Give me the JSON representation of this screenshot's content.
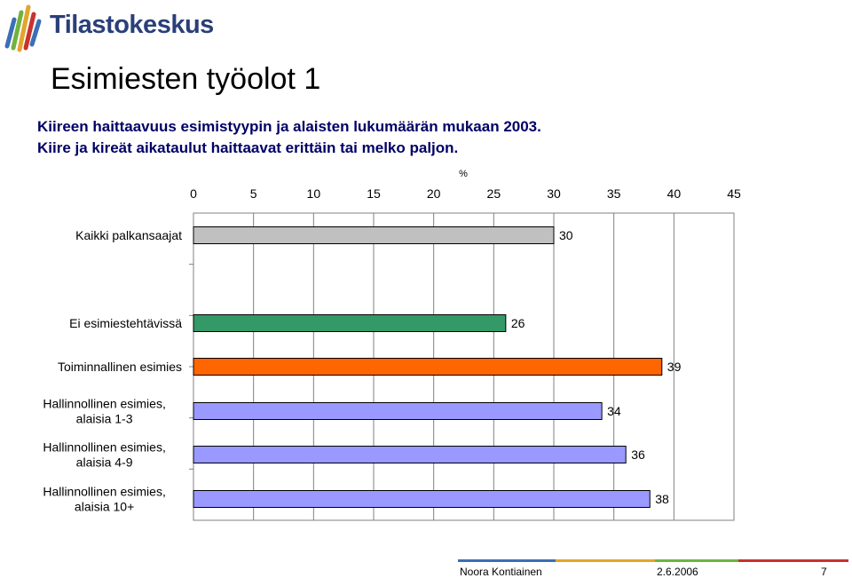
{
  "logo": {
    "text": "Tilastokeskus"
  },
  "title": "Esimiesten työolot 1",
  "subtitle_lines": [
    "Kiireen haittaavuus esimistyypin ja alaisten lukumäärän mukaan 2003.",
    "Kiire ja kireät aikataulut haittaavat erittäin tai melko paljon."
  ],
  "footer": {
    "author": "Noora Kontiainen",
    "date": "2.6.2006",
    "page": "7"
  },
  "chart_data": {
    "type": "bar",
    "orientation": "horizontal",
    "x_unit_label": "%",
    "xlim": [
      0,
      45
    ],
    "x_ticks": [
      "0",
      "5",
      "10",
      "15",
      "20",
      "25",
      "30",
      "35",
      "40",
      "45"
    ],
    "grid": true,
    "categories": [
      "Kaikki palkansaajat",
      "Ei esimiestehtävissä",
      "Toiminnallinen esimies",
      "Hallinnollinen esimies, alaisia 1-3",
      "Hallinnollinen esimies, alaisia 4-9",
      "Hallinnollinen esimies, alaisia 10+"
    ],
    "category_lines": [
      [
        "Kaikki palkansaajat"
      ],
      [
        "Ei esimiestehtävissä"
      ],
      [
        "Toiminnallinen esimies"
      ],
      [
        "Hallinnollinen esimies,",
        "alaisia 1-3"
      ],
      [
        "Hallinnollinen esimies,",
        "alaisia 4-9"
      ],
      [
        "Hallinnollinen esimies,",
        "alaisia 10+"
      ]
    ],
    "values": [
      30,
      26,
      39,
      34,
      36,
      38
    ],
    "bar_labels": [
      "30",
      "26",
      "39",
      "34",
      "36",
      "38"
    ],
    "bar_colors": [
      "#c0c0c0",
      "#339966",
      "#ff6600",
      "#9999ff",
      "#9999ff",
      "#9999ff"
    ]
  }
}
